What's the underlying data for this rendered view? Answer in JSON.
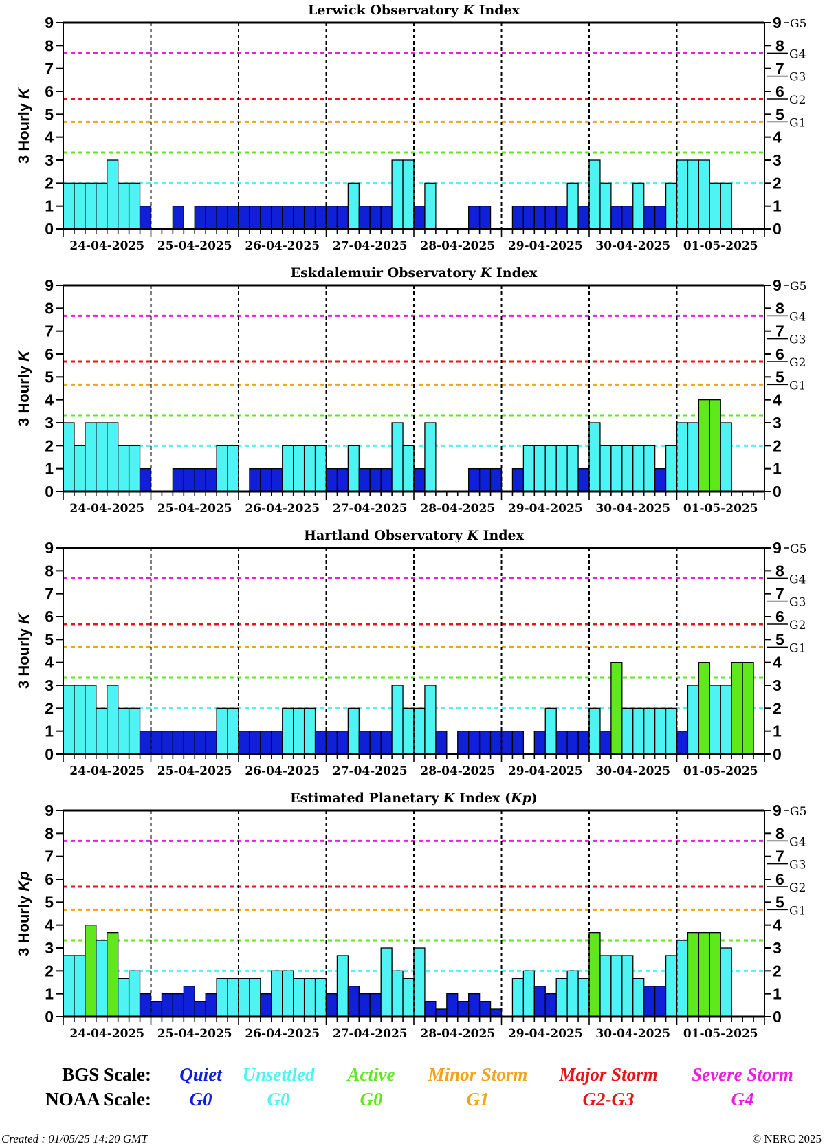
{
  "colors": {
    "quiet": "#1020d8",
    "unsettled": "#4ef3f3",
    "active": "#5fe81c",
    "minor_storm": "#f4a21a",
    "major_storm": "#e8141a",
    "severe_storm": "#ee1ae6",
    "bar_outline": "#000000"
  },
  "thresholds": [
    {
      "level": 2,
      "color": "#4ef3f3"
    },
    {
      "level": 3.33,
      "color": "#5fe81c"
    },
    {
      "level": 4.67,
      "color": "#f4a21a"
    },
    {
      "level": 5.67,
      "color": "#e8141a"
    },
    {
      "level": 7.67,
      "color": "#ee1ae6"
    }
  ],
  "chart_data": [
    {
      "type": "bar",
      "title_pre": "Lerwick Observatory ",
      "title_italic": "K",
      "title_post": " Index",
      "ylabel_pre": "3 Hourly ",
      "ylabel_italic": "K",
      "ylim": [
        0,
        9
      ],
      "yticks": [
        "0",
        "1",
        "2",
        "3",
        "4",
        "5",
        "6",
        "7",
        "8",
        "9"
      ],
      "right_scale": [
        "0",
        "1",
        "2",
        "3",
        "4",
        "5",
        "6",
        "7",
        "8",
        "9"
      ],
      "g_labels": [
        {
          "k": "5",
          "g": "G1"
        },
        {
          "k": "6",
          "g": "G2"
        },
        {
          "k": "7",
          "g": "G3"
        },
        {
          "k": "8",
          "g": "G4"
        },
        {
          "k": "9",
          "g": "G5"
        }
      ],
      "days": [
        "24-04-2025",
        "25-04-2025",
        "26-04-2025",
        "27-04-2025",
        "28-04-2025",
        "29-04-2025",
        "30-04-2025",
        "01-05-2025"
      ],
      "values": [
        2,
        2,
        2,
        2,
        3,
        2,
        2,
        1,
        0,
        0,
        1,
        0,
        1,
        1,
        1,
        1,
        1,
        1,
        1,
        1,
        1,
        1,
        1,
        1,
        1,
        1,
        2,
        1,
        1,
        1,
        3,
        3,
        1,
        2,
        0,
        0,
        0,
        1,
        1,
        0,
        0,
        1,
        1,
        1,
        1,
        1,
        2,
        1,
        3,
        2,
        1,
        1,
        2,
        1,
        1,
        2,
        3,
        3,
        3,
        2,
        2,
        0,
        0,
        0
      ],
      "bar_count": 61
    },
    {
      "type": "bar",
      "title_pre": "Eskdalemuir Observatory ",
      "title_italic": "K",
      "title_post": " Index",
      "ylabel_pre": "3 Hourly ",
      "ylabel_italic": "K",
      "ylim": [
        0,
        9
      ],
      "yticks": [
        "0",
        "1",
        "2",
        "3",
        "4",
        "5",
        "6",
        "7",
        "8",
        "9"
      ],
      "right_scale": [
        "0",
        "1",
        "2",
        "3",
        "4",
        "5",
        "6",
        "7",
        "8",
        "9"
      ],
      "g_labels": [
        {
          "k": "5",
          "g": "G1"
        },
        {
          "k": "6",
          "g": "G2"
        },
        {
          "k": "7",
          "g": "G3"
        },
        {
          "k": "8",
          "g": "G4"
        },
        {
          "k": "9",
          "g": "G5"
        }
      ],
      "days": [
        "24-04-2025",
        "25-04-2025",
        "26-04-2025",
        "27-04-2025",
        "28-04-2025",
        "29-04-2025",
        "30-04-2025",
        "01-05-2025"
      ],
      "values": [
        3,
        2,
        3,
        3,
        3,
        2,
        2,
        1,
        0,
        0,
        1,
        1,
        1,
        1,
        2,
        2,
        0,
        1,
        1,
        1,
        2,
        2,
        2,
        2,
        1,
        1,
        2,
        1,
        1,
        1,
        3,
        2,
        1,
        3,
        0,
        0,
        0,
        1,
        1,
        1,
        0,
        1,
        2,
        2,
        2,
        2,
        2,
        1,
        3,
        2,
        2,
        2,
        2,
        2,
        1,
        2,
        3,
        3,
        4,
        4,
        3,
        0,
        0,
        0
      ],
      "bar_count": 61
    },
    {
      "type": "bar",
      "title_pre": "Hartland Observatory ",
      "title_italic": "K",
      "title_post": " Index",
      "ylabel_pre": "3 Hourly ",
      "ylabel_italic": "K",
      "ylim": [
        0,
        9
      ],
      "yticks": [
        "0",
        "1",
        "2",
        "3",
        "4",
        "5",
        "6",
        "7",
        "8",
        "9"
      ],
      "right_scale": [
        "0",
        "1",
        "2",
        "3",
        "4",
        "5",
        "6",
        "7",
        "8",
        "9"
      ],
      "g_labels": [
        {
          "k": "5",
          "g": "G1"
        },
        {
          "k": "6",
          "g": "G2"
        },
        {
          "k": "7",
          "g": "G3"
        },
        {
          "k": "8",
          "g": "G4"
        },
        {
          "k": "9",
          "g": "G5"
        }
      ],
      "days": [
        "24-04-2025",
        "25-04-2025",
        "26-04-2025",
        "27-04-2025",
        "28-04-2025",
        "29-04-2025",
        "30-04-2025",
        "01-05-2025"
      ],
      "values": [
        3,
        3,
        3,
        2,
        3,
        2,
        2,
        1,
        1,
        1,
        1,
        1,
        1,
        1,
        2,
        2,
        1,
        1,
        1,
        1,
        2,
        2,
        2,
        1,
        1,
        1,
        2,
        1,
        1,
        1,
        3,
        2,
        2,
        3,
        1,
        0,
        1,
        1,
        1,
        1,
        1,
        1,
        0,
        1,
        2,
        1,
        1,
        1,
        2,
        1,
        4,
        2,
        2,
        2,
        2,
        2,
        1,
        3,
        4,
        3,
        3,
        4,
        4,
        0
      ],
      "bar_count": 61
    },
    {
      "type": "bar",
      "title_pre": "Estimated Planetary ",
      "title_italic": "K",
      "title_post": " Index (",
      "title_italic2": "Kp",
      "title_post2": ")",
      "ylabel_pre": "3 Hourly ",
      "ylabel_italic": "Kp",
      "ylim": [
        0,
        9
      ],
      "yticks": [
        "0",
        "1",
        "2",
        "3",
        "4",
        "5",
        "6",
        "7",
        "8",
        "9"
      ],
      "right_scale": [
        "0",
        "1",
        "2",
        "3",
        "4",
        "5",
        "6",
        "7",
        "8",
        "9"
      ],
      "g_labels": [
        {
          "k": "5",
          "g": "G1"
        },
        {
          "k": "6",
          "g": "G2"
        },
        {
          "k": "7",
          "g": "G3"
        },
        {
          "k": "8",
          "g": "G4"
        },
        {
          "k": "9",
          "g": "G5"
        }
      ],
      "days": [
        "24-04-2025",
        "25-04-2025",
        "26-04-2025",
        "27-04-2025",
        "28-04-2025",
        "29-04-2025",
        "30-04-2025",
        "01-05-2025"
      ],
      "values": [
        2.67,
        2.67,
        4,
        3.33,
        3.67,
        1.67,
        2,
        1,
        0.67,
        1,
        1,
        1.33,
        0.67,
        1,
        1.67,
        1.67,
        1.67,
        1.67,
        1,
        2,
        2,
        1.67,
        1.67,
        1.67,
        1,
        2.67,
        1.33,
        1,
        1,
        3,
        2,
        1.67,
        3,
        0.67,
        0.33,
        1,
        0.67,
        1,
        0.67,
        0.33,
        0,
        1.67,
        2,
        1.33,
        1,
        1.67,
        2,
        1.67,
        3.67,
        2.67,
        2.67,
        2.67,
        1.67,
        1.33,
        1.33,
        2.67,
        3.33,
        3.67,
        3.67,
        3.67,
        3,
        0,
        0,
        0
      ],
      "bar_count": 61
    }
  ],
  "legend": {
    "bgs_title": "BGS Scale:",
    "noaa_title": "NOAA Scale:",
    "items": [
      {
        "bgs": "Quiet",
        "noaa": "G0",
        "color": "#1020d8"
      },
      {
        "bgs": "Unsettled",
        "noaa": "G0",
        "color": "#4ef3f3"
      },
      {
        "bgs": "Active",
        "noaa": "G0",
        "color": "#5fe81c"
      },
      {
        "bgs": "Minor Storm",
        "noaa": "G1",
        "color": "#f4a21a"
      },
      {
        "bgs": "Major Storm",
        "noaa": "G2-G3",
        "color": "#e8141a"
      },
      {
        "bgs": "Severe Storm",
        "noaa": "G4",
        "color": "#ee1ae6"
      }
    ]
  },
  "footer": {
    "created": "Created : 01/05/25 14:20 GMT",
    "copyright": "© NERC 2025"
  }
}
